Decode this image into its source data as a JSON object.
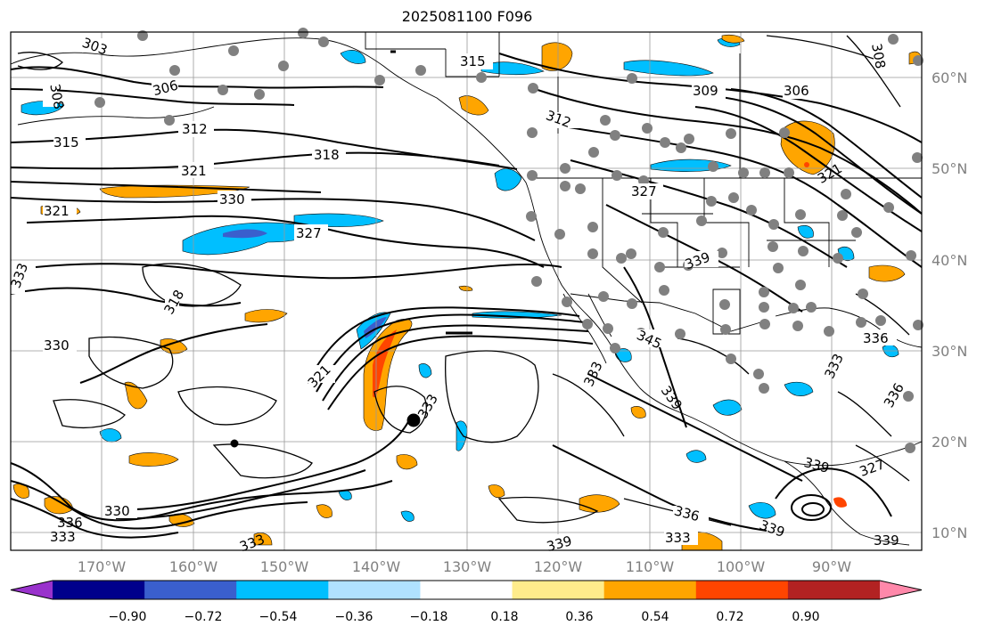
{
  "title": "2025081100 F096",
  "lat_ticks": [
    "60°N",
    "50°N",
    "40°N",
    "30°N",
    "20°N",
    "10°N"
  ],
  "lon_ticks": [
    "170°W",
    "160°W",
    "150°W",
    "140°W",
    "130°W",
    "120°W",
    "110°W",
    "100°W",
    "90°W"
  ],
  "contour_labels": [
    "303",
    "306",
    "309",
    "312",
    "315",
    "318",
    "321",
    "327",
    "330",
    "333",
    "336",
    "339",
    "345",
    "308",
    "309",
    "306",
    "312",
    "315",
    "318",
    "321",
    "327",
    "330",
    "321",
    "333",
    "339",
    "336",
    "339",
    "333"
  ],
  "colorbar": {
    "ticks": [
      "−0.90",
      "−0.72",
      "−0.54",
      "−0.36",
      "−0.18",
      "0.18",
      "0.36",
      "0.54",
      "0.72",
      "0.90"
    ],
    "colors": [
      "#9932cc",
      "#00008b",
      "#3a5fcd",
      "#00bfff",
      "#b0e2ff",
      "#ffffff",
      "#ffec8b",
      "#ffa500",
      "#ff4500",
      "#b22222",
      "#ff88aa"
    ]
  }
}
